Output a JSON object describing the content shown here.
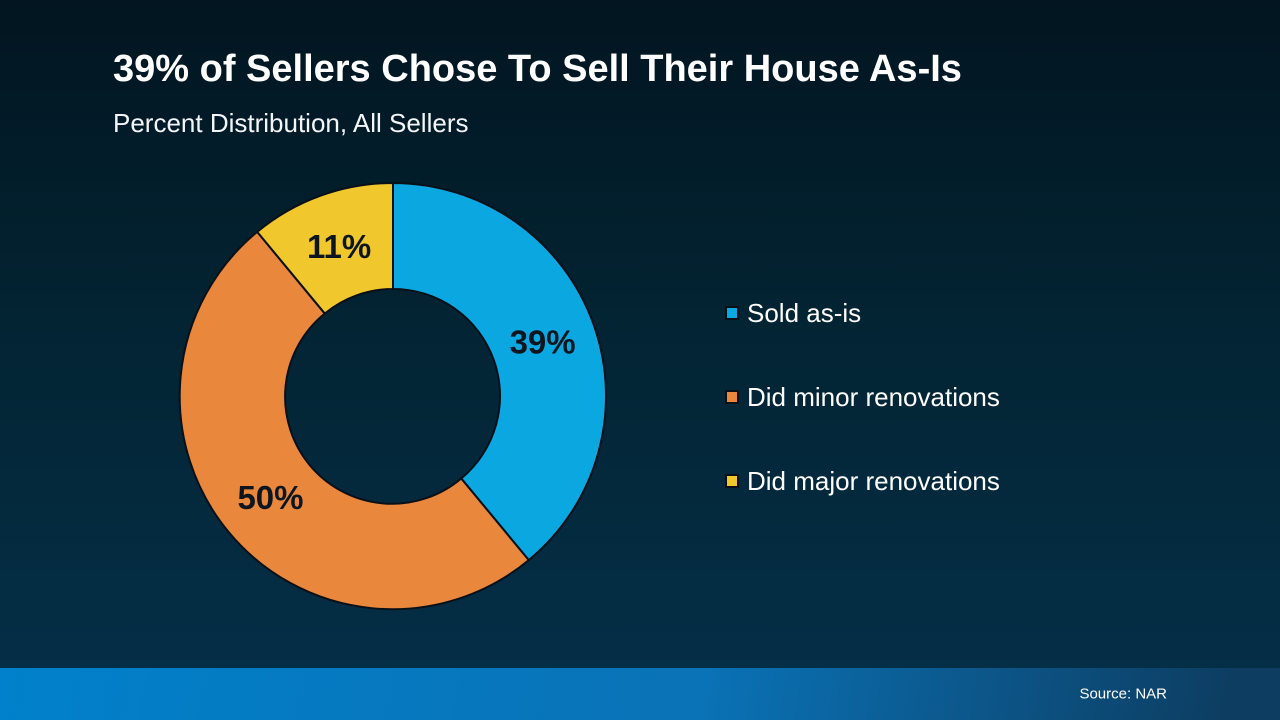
{
  "slide": {
    "title": "39% of Sellers Chose To Sell Their House As-Is",
    "subtitle": "Percent Distribution, All Sellers",
    "source": "Source: NAR"
  },
  "colors": {
    "background_top": "#021520",
    "background_bottom": "#05304a",
    "footer_left": "#0181cb",
    "footer_right": "#0d3d61",
    "slice_stroke": "#0a1018",
    "slice_label_text": "#0d161f",
    "legend_text": "#ffffff",
    "title_text": "#ffffff"
  },
  "chart_data": {
    "type": "pie",
    "subtype": "donut",
    "title": "39% of Sellers Chose To Sell Their House As-Is",
    "subtitle": "Percent Distribution, All Sellers",
    "categories": [
      "Sold as-is",
      "Did minor renovations",
      "Did major renovations"
    ],
    "values": [
      39,
      50,
      11
    ],
    "unit": "%",
    "slice_labels": [
      "39%",
      "50%",
      "11%"
    ],
    "slice_colors": [
      "#0ba7e1",
      "#e9873c",
      "#f1c72e"
    ],
    "start_angle_deg": 0,
    "direction": "clockwise",
    "inner_radius_ratio": 0.5,
    "legend_position": "right",
    "source": "Source: NAR"
  }
}
